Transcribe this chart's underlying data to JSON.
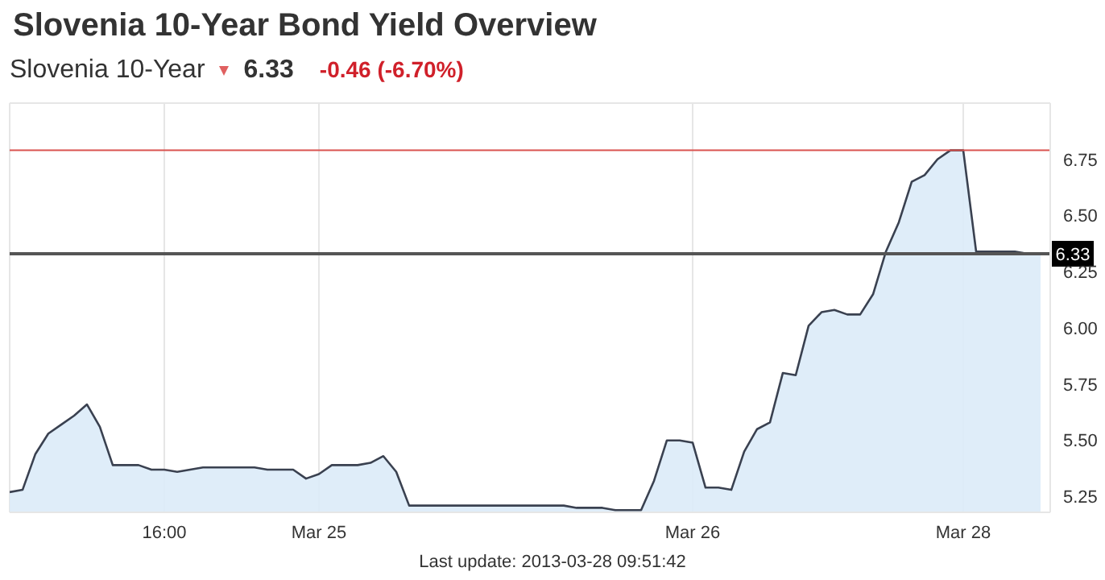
{
  "chart_data": {
    "type": "area",
    "title": "Slovenia 10-Year Bond Yield Overview",
    "subtitle": "Slovenia 10-Year",
    "annotations": [
      "6.33",
      "-0.46 (-6.70%)",
      "Last update: 2013-03-28 09:51:42"
    ],
    "categories": [
      null,
      null,
      null,
      null,
      null,
      null,
      null,
      null,
      null,
      null,
      null,
      null,
      "16:00",
      null,
      null,
      null,
      null,
      null,
      null,
      null,
      null,
      null,
      null,
      null,
      "Mar 25",
      null,
      null,
      null,
      null,
      null,
      null,
      null,
      null,
      null,
      null,
      null,
      null,
      null,
      null,
      null,
      null,
      null,
      null,
      null,
      null,
      null,
      null,
      null,
      null,
      null,
      null,
      null,
      null,
      "Mar 26",
      null,
      null,
      null,
      null,
      null,
      null,
      null,
      null,
      null,
      null,
      null,
      null,
      null,
      null,
      null,
      null,
      null,
      null,
      null,
      null,
      "Mar 28",
      null,
      null,
      null,
      null,
      null,
      null
    ],
    "series": [
      {
        "color": "#3a4150",
        "values": [
          5.27,
          5.28,
          5.44,
          5.53,
          5.57,
          5.61,
          5.66,
          5.56,
          5.39,
          5.39,
          5.39,
          5.37,
          5.37,
          5.36,
          5.37,
          5.38,
          5.38,
          5.38,
          5.38,
          5.38,
          5.37,
          5.37,
          5.37,
          5.33,
          5.35,
          5.39,
          5.39,
          5.39,
          5.4,
          5.43,
          5.36,
          5.21,
          5.21,
          5.21,
          5.21,
          5.21,
          5.21,
          5.21,
          5.21,
          5.21,
          5.21,
          5.21,
          5.21,
          5.21,
          5.2,
          5.2,
          5.2,
          5.19,
          5.19,
          5.19,
          5.32,
          5.5,
          5.5,
          5.49,
          5.29,
          5.29,
          5.28,
          5.45,
          5.55,
          5.58,
          5.8,
          5.79,
          6.01,
          6.07,
          6.08,
          6.06,
          6.06,
          6.15,
          6.34,
          6.47,
          6.65,
          6.68,
          6.75,
          6.79,
          6.79,
          6.34,
          6.34,
          6.34,
          6.34,
          6.33,
          6.33
        ]
      }
    ],
    "ylim": [
      5.18,
      7.0
    ],
    "yticks": [
      5.25,
      {
        "value": 5.5,
        "label": "5.50"
      },
      5.75,
      {
        "value": 6.0,
        "label": "6.00"
      },
      6.25,
      {
        "value": 6.5,
        "label": "6.50"
      },
      6.75
    ],
    "grid": true,
    "ref_lines": [
      {
        "axis": "y",
        "value": 6.79,
        "color": "#d9534f"
      },
      {
        "axis": "y",
        "value": 6.33,
        "label": "6.33",
        "color": "#555555"
      }
    ]
  }
}
